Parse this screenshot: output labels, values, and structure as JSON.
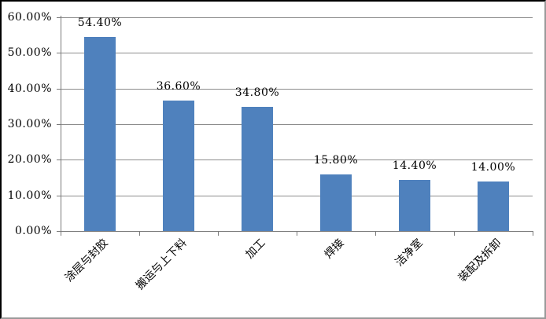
{
  "chart_data": {
    "type": "bar",
    "title": "",
    "categories": [
      "涂层与封胶",
      "搬运与上下料",
      "加工",
      "焊接",
      "洁净室",
      "装配及拆卸"
    ],
    "values": [
      54.4,
      36.6,
      34.8,
      15.8,
      14.4,
      14.0
    ],
    "data_labels": [
      "54.40%",
      "36.60%",
      "34.80%",
      "15.80%",
      "14.40%",
      "14.00%"
    ],
    "y_axis": {
      "min": 0,
      "max": 60,
      "step": 10,
      "tick_labels": [
        "0.00%",
        "10.00%",
        "20.00%",
        "30.00%",
        "40.00%",
        "50.00%",
        "60.00%"
      ]
    },
    "xlabel": "",
    "ylabel": "",
    "grid": true,
    "legend": "none",
    "colors": {
      "bar": "#4F81BD",
      "gridline": "#8C8C8C",
      "axis": "#7A7A7A",
      "text": "#000000",
      "background": "#FFFFFF",
      "frame_dark": "#000000",
      "frame_light": "#9A9A9A"
    }
  }
}
